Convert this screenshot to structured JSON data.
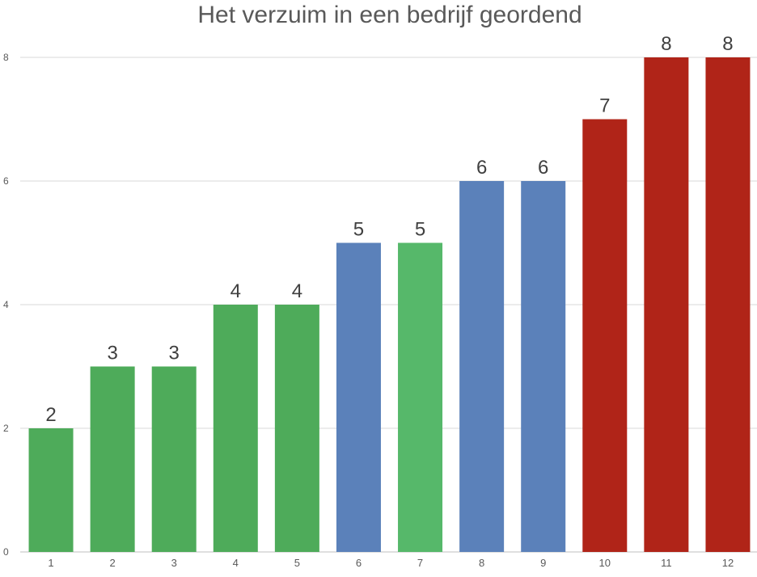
{
  "chart_data": {
    "type": "bar",
    "title": "Het verzuim in een bedrijf geordend",
    "xlabel": "",
    "ylabel": "",
    "categories": [
      "1",
      "2",
      "3",
      "4",
      "5",
      "6",
      "7",
      "8",
      "9",
      "10",
      "11",
      "12"
    ],
    "values": [
      2,
      3,
      3,
      4,
      4,
      5,
      5,
      6,
      6,
      7,
      8,
      8
    ],
    "bar_colors": [
      "#4eab5a",
      "#4eab5a",
      "#4eab5a",
      "#4eab5a",
      "#4eab5a",
      "#5b81ba",
      "#56b86a",
      "#5b81ba",
      "#5b81ba",
      "#b02418",
      "#b02418",
      "#b02418"
    ],
    "ylim": [
      0,
      8
    ],
    "yticks": [
      0,
      2,
      4,
      6,
      8
    ],
    "grid": true,
    "legend": "none",
    "data_labels": true
  }
}
